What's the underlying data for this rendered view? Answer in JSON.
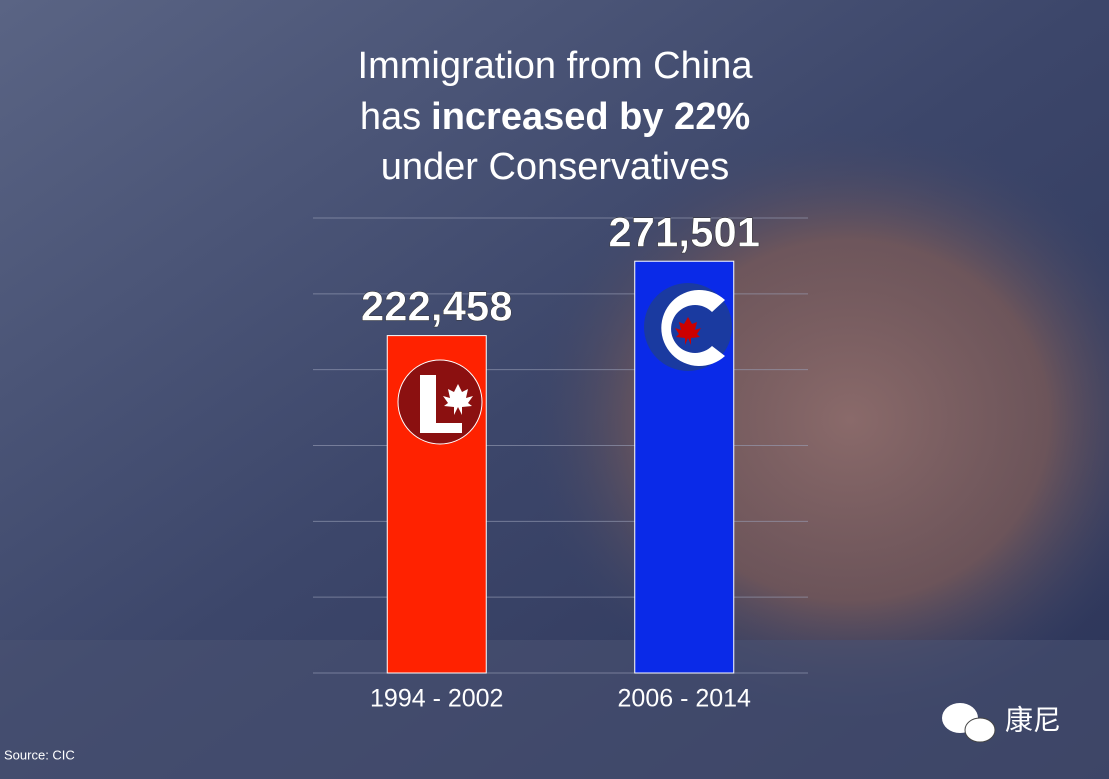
{
  "chart_data": {
    "type": "bar",
    "title": {
      "line1": "Immigration from China",
      "line2_normal": "has",
      "line2_bold": "increased by 22%",
      "line3": "under Conservatives"
    },
    "categories": [
      "1994 - 2002",
      "2006 - 2014"
    ],
    "values": [
      222458,
      271501
    ],
    "value_labels": [
      "222,458",
      "271,501"
    ],
    "colors": [
      "#ff2200",
      "#0a2ae8"
    ],
    "ylim": [
      0,
      300000
    ],
    "yticks": [
      0,
      50000,
      100000,
      150000,
      200000,
      250000,
      300000
    ],
    "grid": true,
    "source": "Source: CIC",
    "watermark": "康尼"
  }
}
